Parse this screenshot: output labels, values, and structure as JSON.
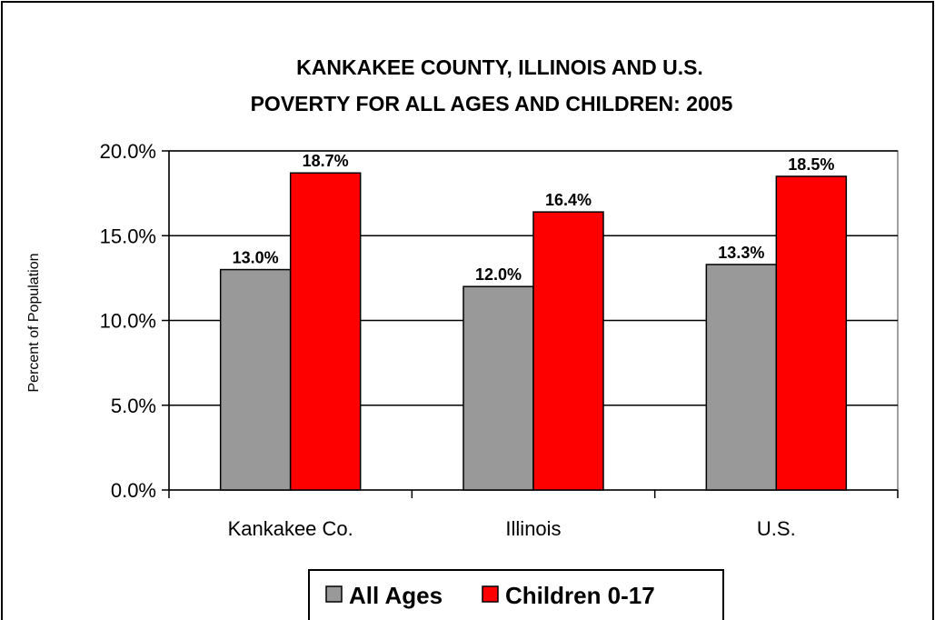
{
  "chart_data": {
    "type": "bar",
    "title_lines": [
      "KANKAKEE COUNTY, ILLINOIS AND U.S.",
      "POVERTY FOR ALL AGES AND CHILDREN:  2005"
    ],
    "ylabel": "Percent of Population",
    "xlabel": "",
    "categories": [
      "Kankakee Co.",
      "Illinois",
      "U.S."
    ],
    "series": [
      {
        "name": "All Ages",
        "color": "#999999",
        "values": [
          13.0,
          12.0,
          13.3
        ],
        "labels": [
          "13.0%",
          "12.0%",
          "13.3%"
        ]
      },
      {
        "name": "Children 0-17",
        "color": "#ff0000",
        "values": [
          18.7,
          16.4,
          18.5
        ],
        "labels": [
          "18.7%",
          "16.4%",
          "18.5%"
        ]
      }
    ],
    "ylim": [
      0,
      20
    ],
    "yticks": [
      0,
      5,
      10,
      15,
      20
    ],
    "ytick_labels": [
      "0.0%",
      "5.0%",
      "10.0%",
      "15.0%",
      "20.0%"
    ],
    "grid": true,
    "legend": "bottom"
  }
}
